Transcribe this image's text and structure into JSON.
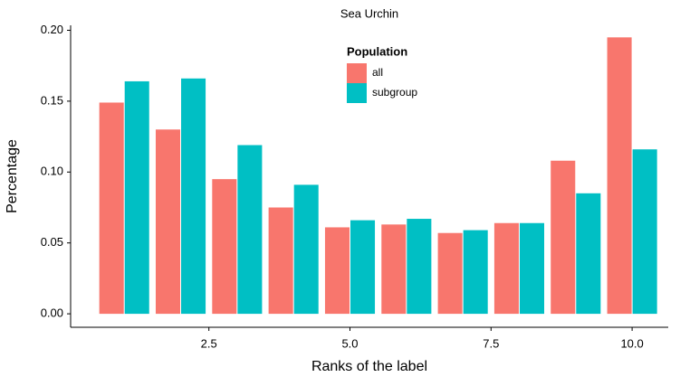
{
  "chart_data": {
    "type": "bar",
    "title": "Sea Urchin",
    "x_label": "Ranks of the label",
    "y_label": "Percentage",
    "x": [
      1,
      2,
      3,
      4,
      5,
      6,
      7,
      8,
      9,
      10
    ],
    "series": [
      {
        "name": "all",
        "color": "#f8766d",
        "values": [
          0.149,
          0.13,
          0.095,
          0.075,
          0.061,
          0.063,
          0.057,
          0.064,
          0.108,
          0.195
        ]
      },
      {
        "name": "subgroup",
        "color": "#00bfc4",
        "values": [
          0.164,
          0.166,
          0.119,
          0.091,
          0.066,
          0.067,
          0.059,
          0.064,
          0.085,
          0.116
        ]
      }
    ],
    "legend_title": "Population",
    "xlim": [
      0.05,
      10.64
    ],
    "ylim": [
      -0.0095,
      0.2035
    ],
    "xticks": [
      2.5,
      {
        "value": 5,
        "label": "5.0"
      },
      7.5,
      {
        "value": 10,
        "label": "10.0"
      }
    ],
    "yticks": [
      {
        "value": 0,
        "label": "0.00"
      },
      0.05,
      {
        "value": 0.1,
        "label": "0.10"
      },
      0.15,
      {
        "value": 0.2,
        "label": "0.20"
      }
    ],
    "grid": false
  }
}
